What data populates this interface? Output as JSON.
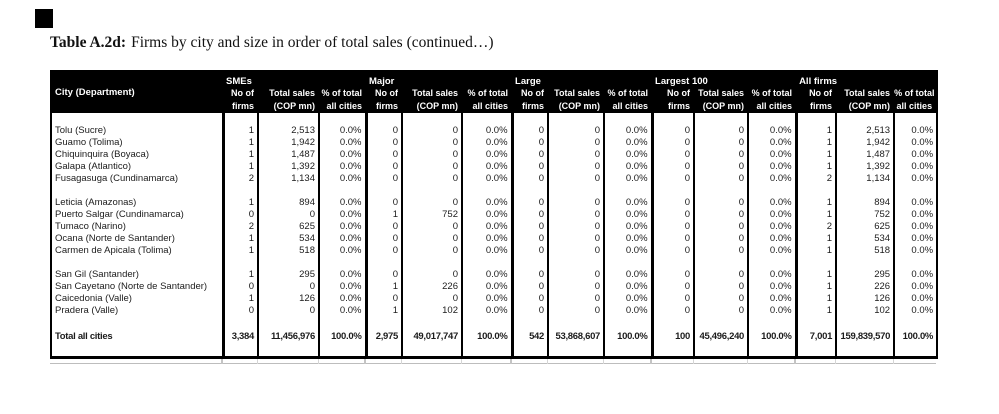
{
  "title": {
    "label": "Table A.2d:",
    "caption": "Firms by city and size in order of total sales (continued…)"
  },
  "style": {
    "header_bg": "#000000",
    "header_fg": "#ffffff"
  },
  "table": {
    "city_header": "City (Department)",
    "group_headers": [
      "SMEs",
      "Major",
      "Large",
      "Largest 100",
      "All firms"
    ],
    "sub_headers": [
      [
        "No of",
        "firms"
      ],
      [
        "Total sales",
        "(COP mn)"
      ],
      [
        "% of total",
        "all cities"
      ]
    ],
    "row_groups": [
      [
        {
          "city": "Tolu (Sucre)",
          "cells": [
            "1",
            "2,513",
            "0.0%",
            "0",
            "0",
            "0.0%",
            "0",
            "0",
            "0.0%",
            "0",
            "0",
            "0.0%",
            "1",
            "2,513",
            "0.0%"
          ]
        },
        {
          "city": "Guamo (Tolima)",
          "cells": [
            "1",
            "1,942",
            "0.0%",
            "0",
            "0",
            "0.0%",
            "0",
            "0",
            "0.0%",
            "0",
            "0",
            "0.0%",
            "1",
            "1,942",
            "0.0%"
          ]
        },
        {
          "city": "Chiquinquira (Boyaca)",
          "cells": [
            "1",
            "1,487",
            "0.0%",
            "0",
            "0",
            "0.0%",
            "0",
            "0",
            "0.0%",
            "0",
            "0",
            "0.0%",
            "1",
            "1,487",
            "0.0%"
          ]
        },
        {
          "city": "Galapa (Atlantico)",
          "cells": [
            "1",
            "1,392",
            "0.0%",
            "0",
            "0",
            "0.0%",
            "0",
            "0",
            "0.0%",
            "0",
            "0",
            "0.0%",
            "1",
            "1,392",
            "0.0%"
          ]
        },
        {
          "city": "Fusagasuga (Cundinamarca)",
          "cells": [
            "2",
            "1,134",
            "0.0%",
            "0",
            "0",
            "0.0%",
            "0",
            "0",
            "0.0%",
            "0",
            "0",
            "0.0%",
            "2",
            "1,134",
            "0.0%"
          ]
        }
      ],
      [
        {
          "city": "Leticia (Amazonas)",
          "cells": [
            "1",
            "894",
            "0.0%",
            "0",
            "0",
            "0.0%",
            "0",
            "0",
            "0.0%",
            "0",
            "0",
            "0.0%",
            "1",
            "894",
            "0.0%"
          ]
        },
        {
          "city": "Puerto Salgar (Cundinamarca)",
          "cells": [
            "0",
            "0",
            "0.0%",
            "1",
            "752",
            "0.0%",
            "0",
            "0",
            "0.0%",
            "0",
            "0",
            "0.0%",
            "1",
            "752",
            "0.0%"
          ]
        },
        {
          "city": "Tumaco (Narino)",
          "cells": [
            "2",
            "625",
            "0.0%",
            "0",
            "0",
            "0.0%",
            "0",
            "0",
            "0.0%",
            "0",
            "0",
            "0.0%",
            "2",
            "625",
            "0.0%"
          ]
        },
        {
          "city": "Ocana (Norte de Santander)",
          "cells": [
            "1",
            "534",
            "0.0%",
            "0",
            "0",
            "0.0%",
            "0",
            "0",
            "0.0%",
            "0",
            "0",
            "0.0%",
            "1",
            "534",
            "0.0%"
          ]
        },
        {
          "city": "Carmen de Apicala (Tolima)",
          "cells": [
            "1",
            "518",
            "0.0%",
            "0",
            "0",
            "0.0%",
            "0",
            "0",
            "0.0%",
            "0",
            "0",
            "0.0%",
            "1",
            "518",
            "0.0%"
          ]
        }
      ],
      [
        {
          "city": "San Gil (Santander)",
          "cells": [
            "1",
            "295",
            "0.0%",
            "0",
            "0",
            "0.0%",
            "0",
            "0",
            "0.0%",
            "0",
            "0",
            "0.0%",
            "1",
            "295",
            "0.0%"
          ]
        },
        {
          "city": "San Cayetano (Norte de Santander)",
          "cells": [
            "0",
            "0",
            "0.0%",
            "1",
            "226",
            "0.0%",
            "0",
            "0",
            "0.0%",
            "0",
            "0",
            "0.0%",
            "1",
            "226",
            "0.0%"
          ]
        },
        {
          "city": "Caicedonia (Valle)",
          "cells": [
            "1",
            "126",
            "0.0%",
            "0",
            "0",
            "0.0%",
            "0",
            "0",
            "0.0%",
            "0",
            "0",
            "0.0%",
            "1",
            "126",
            "0.0%"
          ]
        },
        {
          "city": "Pradera (Valle)",
          "cells": [
            "0",
            "0",
            "0.0%",
            "1",
            "102",
            "0.0%",
            "0",
            "0",
            "0.0%",
            "0",
            "0",
            "0.0%",
            "1",
            "102",
            "0.0%"
          ]
        }
      ]
    ],
    "total": {
      "label": "Total all cities",
      "cells": [
        "3,384",
        "11,456,976",
        "100.0%",
        "2,975",
        "49,017,747",
        "100.0%",
        "542",
        "53,868,607",
        "100.0%",
        "100",
        "45,496,240",
        "100.0%",
        "7,001",
        "159,839,570",
        "100.0%"
      ]
    }
  }
}
